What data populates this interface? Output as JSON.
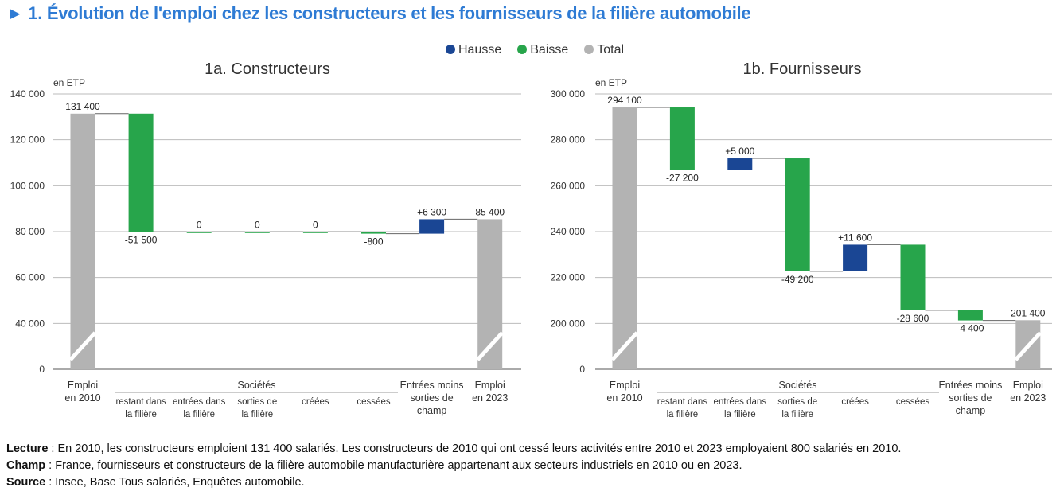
{
  "title": "► 1. Évolution de l'emploi chez les constructeurs et les fournisseurs de la filière automobile",
  "legend": [
    {
      "label": "Hausse",
      "color": "#1a4694"
    },
    {
      "label": "Baisse",
      "color": "#27a54b"
    },
    {
      "label": "Total",
      "color": "#b3b3b3"
    }
  ],
  "chart_data": [
    {
      "type": "waterfall",
      "title": "1a. Constructeurs",
      "ylabel": "en ETP",
      "yticks": [
        "140 000",
        "120 000",
        "100 000",
        "80 000",
        "60 000",
        "40 000",
        "0"
      ],
      "ylim": [
        0,
        140000
      ],
      "axis_break": true,
      "grid": true,
      "group_label": "Sociétés",
      "categories": [
        "Emploi en 2010",
        "restant dans la filière",
        "entrées dans la filière",
        "sorties de la filière",
        "créées",
        "cessées",
        "Entrées moins sorties de champ",
        "Emploi en 2023"
      ],
      "kinds": [
        "total",
        "change",
        "change",
        "change",
        "change",
        "change",
        "change",
        "total"
      ],
      "values": [
        131400,
        -51500,
        0,
        0,
        0,
        -800,
        6300,
        85400
      ],
      "labels": [
        "131 400",
        "-51 500",
        "0",
        "0",
        "0",
        "-800",
        "+6 300",
        "85 400"
      ]
    },
    {
      "type": "waterfall",
      "title": "1b. Fournisseurs",
      "ylabel": "en ETP",
      "yticks": [
        "300 000",
        "280 000",
        "260 000",
        "240 000",
        "220 000",
        "200 000",
        "0"
      ],
      "ylim": [
        0,
        300000
      ],
      "axis_break": true,
      "grid": true,
      "group_label": "Sociétés",
      "categories": [
        "Emploi en 2010",
        "restant dans la filière",
        "entrées dans la filière",
        "sorties de la filière",
        "créées",
        "cessées",
        "Entrées moins sorties de champ",
        "Emploi en 2023"
      ],
      "kinds": [
        "total",
        "change",
        "change",
        "change",
        "change",
        "change",
        "change",
        "total"
      ],
      "values": [
        294100,
        -27200,
        5000,
        -49200,
        11600,
        -28600,
        -4400,
        201400
      ],
      "labels": [
        "294 100",
        "-27 200",
        "+5 000",
        "-49 200",
        "+11 600",
        "-28 600",
        "-4 400",
        "201 400"
      ]
    }
  ],
  "notes": [
    {
      "label": "Lecture",
      "text": " : En 2010, les constructeurs emploient 131 400 salariés. Les constructeurs de 2010 qui ont cessé leurs activités entre 2010 et 2023 employaient 800 salariés en 2010."
    },
    {
      "label": "Champ",
      "text": " : France, fournisseurs et constructeurs de la filière automobile manufacturière appartenant aux secteurs industriels en 2010 ou en 2023."
    },
    {
      "label": "Source",
      "text": " : Insee, Base Tous salariés, Enquêtes automobile."
    }
  ]
}
